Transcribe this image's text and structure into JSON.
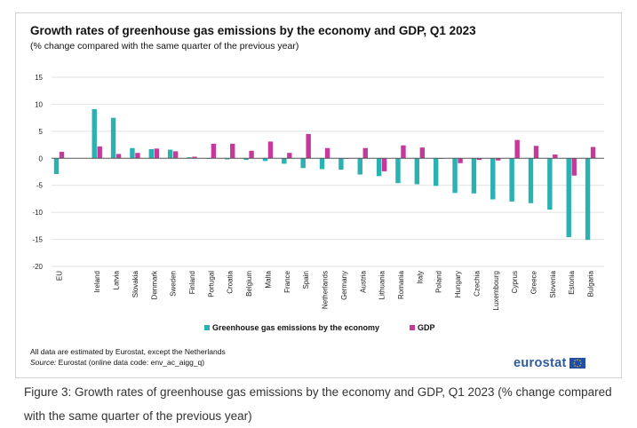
{
  "title": "Growth rates of greenhouse gas emissions by the economy and GDP, Q1 2023",
  "subtitle": "(% change compared with the same quarter of the previous year)",
  "legend": {
    "ghg_label": "Greenhouse gas emissions by the economy",
    "gdp_label": "GDP"
  },
  "footnote": "All data are estimated by Eurostat, except the Netherlands",
  "source": {
    "label": "Source:",
    "text": "Eurostat (online data code: env_ac_aigg_q)"
  },
  "logo_text": "eurostat",
  "caption": "Figure 3: Growth rates of greenhouse gas emissions by the economy and GDP, Q1 2023 (% change compared with the same quarter of the previous year)",
  "colors": {
    "ghg": "#2ab1b1",
    "gdp": "#c6399a",
    "grid": "#e2e2e2",
    "axis": "#555555"
  },
  "chart_data": {
    "type": "bar",
    "title": "Growth rates of greenhouse gas emissions by the economy and GDP, Q1 2023",
    "subtitle": "(% change compared with the same quarter of the previous year)",
    "ylim": [
      -20,
      15
    ],
    "yticks": [
      15,
      10,
      5,
      0,
      -5,
      -10,
      -15,
      -20
    ],
    "grid": true,
    "legend_position": "bottom",
    "categories": [
      "EU",
      "",
      "Ireland",
      "Latvia",
      "Slovakia",
      "Denmark",
      "Sweden",
      "Finland",
      "Portugal",
      "Croatia",
      "Belgium",
      "Malta",
      "France",
      "Spain",
      "Netherlands",
      "Germany",
      "Austria",
      "Lithuania",
      "Romania",
      "Italy",
      "Poland",
      "Hungary",
      "Czechia",
      "Luxembourg",
      "Cyprus",
      "Greece",
      "Slovenia",
      "Estonia",
      "Bulgaria"
    ],
    "series": [
      {
        "name": "Greenhouse gas emissions by the economy",
        "values": [
          -2.9,
          null,
          9.1,
          7.5,
          1.9,
          1.7,
          1.6,
          0.2,
          0.0,
          -0.2,
          -0.3,
          -0.5,
          -1.0,
          -1.8,
          -2.0,
          -2.1,
          -3.0,
          -3.3,
          -4.6,
          -4.8,
          -5.1,
          -6.4,
          -6.5,
          -7.6,
          -8.0,
          -8.3,
          -9.5,
          -14.6,
          -15.1
        ]
      },
      {
        "name": "GDP",
        "values": [
          1.2,
          null,
          2.2,
          0.8,
          1.0,
          1.8,
          1.3,
          0.3,
          2.7,
          2.7,
          1.4,
          3.1,
          1.0,
          4.5,
          1.9,
          -0.1,
          1.9,
          -2.4,
          2.4,
          2.0,
          0.0,
          -0.9,
          -0.3,
          -0.4,
          3.4,
          2.3,
          0.7,
          -3.2,
          2.1
        ]
      }
    ]
  }
}
